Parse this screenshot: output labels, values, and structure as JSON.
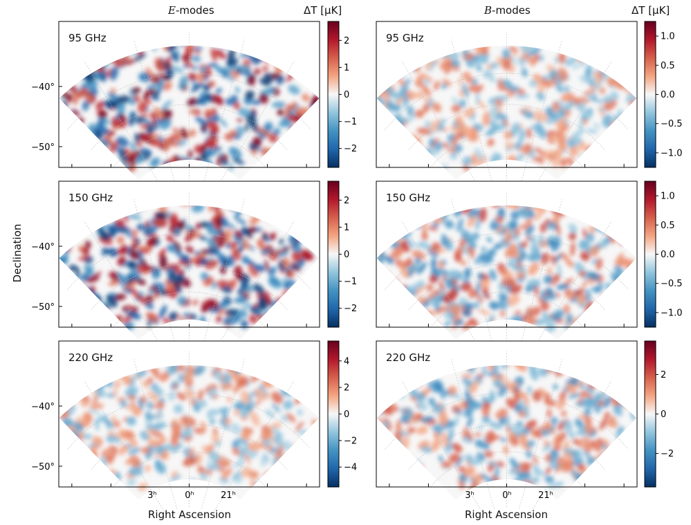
{
  "figure": {
    "columns": [
      {
        "title_italic": "E",
        "title_rest": "-modes",
        "cb_unit": "ΔT [μK]"
      },
      {
        "title_italic": "B",
        "title_rest": "-modes",
        "cb_unit": "ΔT [μK]"
      }
    ],
    "ylabel": "Declination",
    "xlabel": "Right Ascension",
    "colors": {
      "low": "#053061",
      "mid": "#f7f7f7",
      "high": "#67001f"
    }
  },
  "chart_data": [
    {
      "type": "heatmap",
      "mode": "E",
      "label": "95 GHz",
      "colorbar": {
        "min": -2.7,
        "max": 2.7,
        "ticks": [
          -2,
          -1,
          0,
          1,
          2
        ],
        "tick_labels": [
          "−2",
          "−1",
          "0",
          "1",
          "2"
        ]
      },
      "dec_ticks": [
        "−40°",
        "−50°"
      ],
      "ra_ticks": [],
      "seed": 11,
      "amplitude": 1.0
    },
    {
      "type": "heatmap",
      "mode": "B",
      "label": "95 GHz",
      "colorbar": {
        "min": -1.25,
        "max": 1.25,
        "ticks": [
          -1.0,
          -0.5,
          0.0,
          0.5,
          1.0
        ],
        "tick_labels": [
          "−1.0",
          "−0.5",
          "0.0",
          "0.5",
          "1.0"
        ]
      },
      "dec_ticks": [],
      "ra_ticks": [],
      "seed": 23,
      "amplitude": 0.45
    },
    {
      "type": "heatmap",
      "mode": "E",
      "label": "150 GHz",
      "colorbar": {
        "min": -2.7,
        "max": 2.7,
        "ticks": [
          -2,
          -1,
          0,
          1,
          2
        ],
        "tick_labels": [
          "−2",
          "−1",
          "0",
          "1",
          "2"
        ]
      },
      "dec_ticks": [
        "−40°",
        "−50°"
      ],
      "ra_ticks": [],
      "seed": 37,
      "amplitude": 1.0
    },
    {
      "type": "heatmap",
      "mode": "B",
      "label": "150 GHz",
      "colorbar": {
        "min": -1.25,
        "max": 1.25,
        "ticks": [
          -1.0,
          -0.5,
          0.0,
          0.5,
          1.0
        ],
        "tick_labels": [
          "−1.0",
          "−0.5",
          "0.0",
          "0.5",
          "1.0"
        ]
      },
      "dec_ticks": [],
      "ra_ticks": [],
      "seed": 41,
      "amplitude": 0.6
    },
    {
      "type": "heatmap",
      "mode": "E",
      "label": "220 GHz",
      "colorbar": {
        "min": -5.5,
        "max": 5.5,
        "ticks": [
          -4,
          -2,
          0,
          2,
          4
        ],
        "tick_labels": [
          "−4",
          "−2",
          "0",
          "2",
          "4"
        ]
      },
      "dec_ticks": [
        "−40°",
        "−50°"
      ],
      "ra_ticks": [
        "3ʰ",
        "0ʰ",
        "21ʰ"
      ],
      "seed": 53,
      "amplitude": 0.45
    },
    {
      "type": "heatmap",
      "mode": "B",
      "label": "220 GHz",
      "colorbar": {
        "min": -3.7,
        "max": 3.7,
        "ticks": [
          -2,
          0,
          2
        ],
        "tick_labels": [
          "−2",
          "0",
          "2"
        ]
      },
      "dec_ticks": [],
      "ra_ticks": [
        "3ʰ",
        "0ʰ",
        "21ʰ"
      ],
      "seed": 67,
      "amplitude": 0.55
    }
  ]
}
